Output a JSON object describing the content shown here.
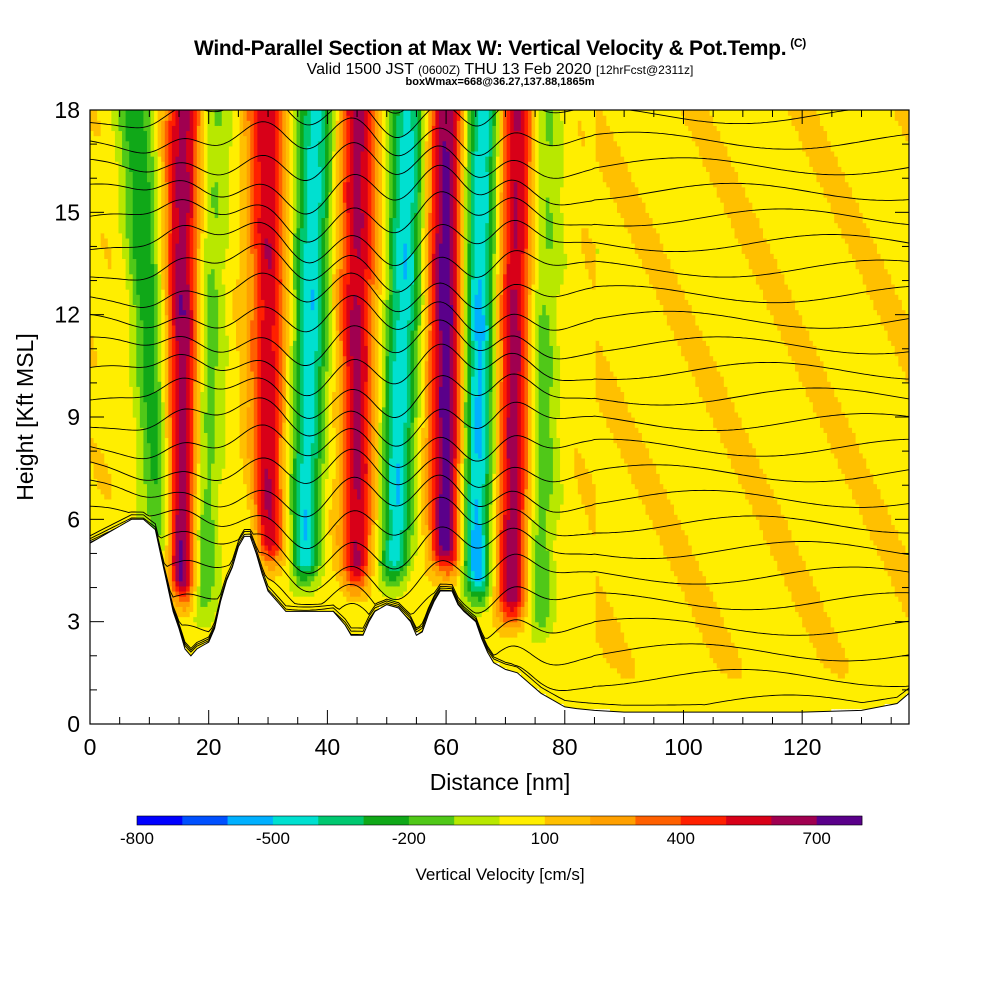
{
  "header": {
    "title": "Wind-Parallel Section at Max W: Vertical Velocity & Pot.Temp.",
    "copyright": "(C)",
    "valid_prefix": "Valid 1500 JST",
    "valid_utc": "(0600Z)",
    "valid_date": "THU 13 Feb 2020",
    "forecast": "[12hrFcst@2311z]",
    "box_info": "boxWmax=668@36.27,137.88,1865m"
  },
  "chart_data": {
    "type": "heatmap",
    "title": "Wind-Parallel Section at Max W: Vertical Velocity & Pot.Temp.",
    "xlabel": "Distance [nm]",
    "ylabel": "Height [Kft MSL]",
    "xlim": [
      0,
      138
    ],
    "ylim": [
      0,
      18
    ],
    "x_ticks": [
      0,
      20,
      40,
      60,
      80,
      100,
      120
    ],
    "y_ticks": [
      0,
      3,
      6,
      9,
      12,
      15,
      18
    ],
    "colorbar": {
      "label": "Vertical Velocity [cm/s]",
      "range": [
        -800,
        800
      ],
      "tick_values": [
        -800,
        -500,
        -200,
        100,
        400,
        700
      ],
      "colors": [
        "#0000ff",
        "#0050ff",
        "#00b0ff",
        "#00e0d0",
        "#00c870",
        "#10a818",
        "#50c818",
        "#b8e800",
        "#ffee00",
        "#ffc000",
        "#ffa000",
        "#ff6000",
        "#ff2000",
        "#d80018",
        "#a00050",
        "#5a008a"
      ]
    },
    "terrain": [
      [
        0,
        5.3
      ],
      [
        3,
        5.6
      ],
      [
        7,
        6.0
      ],
      [
        9,
        6.0
      ],
      [
        11,
        5.7
      ],
      [
        12.5,
        4.5
      ],
      [
        14,
        3.3
      ],
      [
        15,
        2.8
      ],
      [
        16,
        2.2
      ],
      [
        17,
        2.0
      ],
      [
        18,
        2.2
      ],
      [
        19,
        2.3
      ],
      [
        20,
        2.4
      ],
      [
        21,
        2.8
      ],
      [
        22,
        3.6
      ],
      [
        23,
        4.2
      ],
      [
        24,
        4.6
      ],
      [
        25,
        5.2
      ],
      [
        26,
        5.5
      ],
      [
        27,
        5.5
      ],
      [
        28,
        5.0
      ],
      [
        29,
        4.4
      ],
      [
        30,
        3.9
      ],
      [
        31,
        3.7
      ],
      [
        32,
        3.5
      ],
      [
        33,
        3.3
      ],
      [
        35,
        3.3
      ],
      [
        38,
        3.3
      ],
      [
        41,
        3.3
      ],
      [
        43,
        2.9
      ],
      [
        44,
        2.6
      ],
      [
        45,
        2.6
      ],
      [
        46,
        2.6
      ],
      [
        47,
        3.0
      ],
      [
        48,
        3.3
      ],
      [
        50,
        3.5
      ],
      [
        52,
        3.4
      ],
      [
        54,
        3.0
      ],
      [
        55,
        2.6
      ],
      [
        56,
        2.7
      ],
      [
        57,
        3.2
      ],
      [
        58,
        3.6
      ],
      [
        59,
        3.9
      ],
      [
        61,
        3.9
      ],
      [
        62,
        3.5
      ],
      [
        63,
        3.3
      ],
      [
        65,
        3.0
      ],
      [
        66,
        2.5
      ],
      [
        67,
        2.1
      ],
      [
        68,
        1.8
      ],
      [
        70,
        1.6
      ],
      [
        72,
        1.5
      ],
      [
        74,
        1.2
      ],
      [
        76,
        0.9
      ],
      [
        78,
        0.7
      ],
      [
        80,
        0.5
      ],
      [
        82,
        0.45
      ],
      [
        85,
        0.4
      ],
      [
        90,
        0.35
      ],
      [
        100,
        0.35
      ],
      [
        110,
        0.35
      ],
      [
        120,
        0.35
      ],
      [
        130,
        0.4
      ],
      [
        136,
        0.6
      ],
      [
        138,
        0.9
      ]
    ],
    "velocity_bands": [
      {
        "x_bottom": 12,
        "x_top": 8,
        "peak_cm_s": -350,
        "z_start": 4.5
      },
      {
        "x_bottom": 15.5,
        "x_top": 16,
        "peak_cm_s": 650,
        "z_start": 3.0
      },
      {
        "x_bottom": 19,
        "x_top": 20,
        "peak_cm_s": -280,
        "z_start": 2.5
      },
      {
        "x_bottom": 30,
        "x_top": 30,
        "peak_cm_s": 500,
        "z_start": 4.0
      },
      {
        "x_bottom": 36,
        "x_top": 38,
        "peak_cm_s": -550,
        "z_start": 3.5
      },
      {
        "x_bottom": 45,
        "x_top": 45,
        "peak_cm_s": 550,
        "z_start": 3.5
      },
      {
        "x_bottom": 51,
        "x_top": 54,
        "peak_cm_s": -560,
        "z_start": 3.5
      },
      {
        "x_bottom": 60,
        "x_top": 60,
        "peak_cm_s": 700,
        "z_start": 3.8
      },
      {
        "x_bottom": 65,
        "x_top": 66,
        "peak_cm_s": -620,
        "z_start": 3.0
      },
      {
        "x_bottom": 71,
        "x_top": 72,
        "peak_cm_s": 600,
        "z_start": 2.5
      },
      {
        "x_bottom": 76,
        "x_top": 76,
        "peak_cm_s": -250,
        "z_start": 2.0
      }
    ],
    "theta_contour_count": 28
  }
}
